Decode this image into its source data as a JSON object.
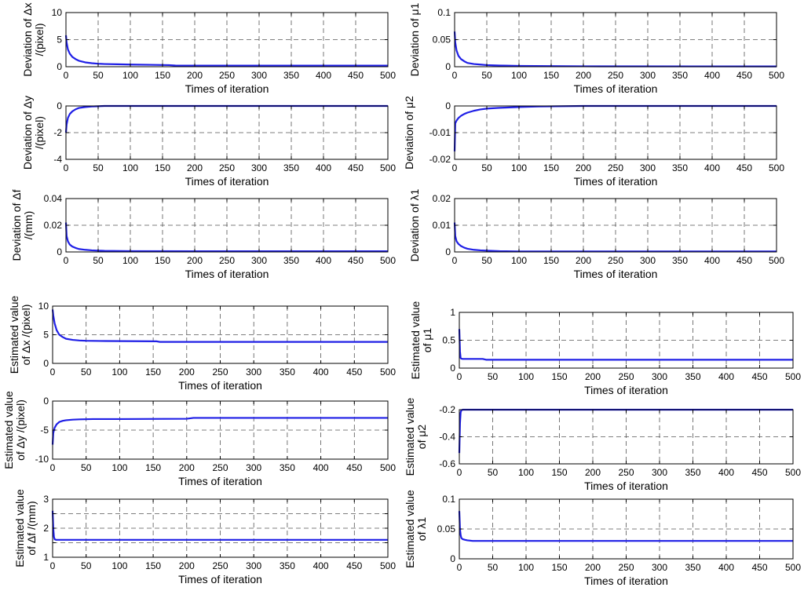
{
  "colors": {
    "line": "#1f1fe6",
    "grid": "#555555",
    "axis": "#000000"
  },
  "chart_data": [
    {
      "id": "dev-dx",
      "type": "line",
      "ylabel": [
        "Deviation of Δx",
        "/(pixel)"
      ],
      "xlabel": "Times of iteration",
      "xlim": [
        0,
        500
      ],
      "ylim": [
        0,
        10
      ],
      "xticks": [
        0,
        50,
        100,
        150,
        200,
        250,
        300,
        350,
        400,
        450,
        500
      ],
      "yticks": [
        0,
        5,
        10
      ],
      "ytick_labels": [
        "0",
        "5",
        "10"
      ],
      "series": [
        {
          "name": "Δx deviation",
          "x": [
            0,
            1,
            3,
            6,
            10,
            15,
            20,
            30,
            40,
            50,
            60,
            80,
            100,
            130,
            160,
            170,
            200,
            300,
            400,
            500
          ],
          "y": [
            5.8,
            4.5,
            3.2,
            2.4,
            1.8,
            1.4,
            1.1,
            0.8,
            0.65,
            0.55,
            0.5,
            0.45,
            0.4,
            0.35,
            0.3,
            0.22,
            0.2,
            0.2,
            0.2,
            0.2
          ]
        }
      ]
    },
    {
      "id": "dev-mu1",
      "type": "line",
      "ylabel": [
        "Deviation of μ1"
      ],
      "xlabel": "Times of iteration",
      "xlim": [
        0,
        500
      ],
      "ylim": [
        0,
        0.1
      ],
      "xticks": [
        0,
        50,
        100,
        150,
        200,
        250,
        300,
        350,
        400,
        450,
        500
      ],
      "yticks": [
        0,
        0.05,
        0.1
      ],
      "ytick_labels": [
        "0",
        "0.05",
        "0.1"
      ],
      "series": [
        {
          "name": "μ1 deviation",
          "x": [
            0,
            1,
            3,
            6,
            10,
            15,
            20,
            30,
            40,
            50,
            60,
            80,
            100,
            200,
            500
          ],
          "y": [
            0.065,
            0.045,
            0.03,
            0.02,
            0.014,
            0.01,
            0.007,
            0.005,
            0.004,
            0.003,
            0.0025,
            0.002,
            0.0015,
            0.0008,
            0.0005
          ]
        }
      ]
    },
    {
      "id": "dev-dy",
      "type": "line",
      "ylabel": [
        "Deviation of Δy",
        "/(pixel)"
      ],
      "xlabel": "Times of iteration",
      "xlim": [
        0,
        500
      ],
      "ylim": [
        -4,
        0
      ],
      "xticks": [
        0,
        50,
        100,
        150,
        200,
        250,
        300,
        350,
        400,
        450,
        500
      ],
      "yticks": [
        -4,
        -2,
        0
      ],
      "ytick_labels": [
        "-4",
        "-2",
        "0"
      ],
      "series": [
        {
          "name": "Δy deviation",
          "x": [
            0,
            1,
            3,
            6,
            10,
            15,
            20,
            30,
            40,
            50,
            60,
            500
          ],
          "y": [
            -2.0,
            -1.4,
            -0.9,
            -0.6,
            -0.4,
            -0.25,
            -0.15,
            -0.08,
            -0.04,
            -0.02,
            0,
            0
          ]
        }
      ]
    },
    {
      "id": "dev-mu2",
      "type": "line",
      "ylabel": [
        "Deviation of μ2"
      ],
      "xlabel": "Times of iteration",
      "xlim": [
        0,
        500
      ],
      "ylim": [
        -0.02,
        0
      ],
      "xticks": [
        0,
        50,
        100,
        150,
        200,
        250,
        300,
        350,
        400,
        450,
        500
      ],
      "yticks": [
        -0.02,
        -0.01,
        0
      ],
      "ytick_labels": [
        "-0.02",
        "-0.01",
        "0"
      ],
      "series": [
        {
          "name": "μ2 deviation",
          "x": [
            0,
            1,
            3,
            6,
            10,
            15,
            20,
            30,
            40,
            50,
            70,
            100,
            130,
            200,
            500
          ],
          "y": [
            -0.017,
            -0.0065,
            -0.0055,
            -0.0045,
            -0.0037,
            -0.003,
            -0.0025,
            -0.0018,
            -0.0013,
            -0.001,
            -0.0007,
            -0.0004,
            -0.0002,
            0,
            0
          ]
        }
      ]
    },
    {
      "id": "dev-df",
      "type": "line",
      "ylabel": [
        "Deviation of Δf",
        "/(mm)"
      ],
      "xlabel": "Times of iteration",
      "xlim": [
        0,
        500
      ],
      "ylim": [
        0,
        0.04
      ],
      "xticks": [
        0,
        50,
        100,
        150,
        200,
        250,
        300,
        350,
        400,
        450,
        500
      ],
      "yticks": [
        0,
        0.02,
        0.04
      ],
      "ytick_labels": [
        "0",
        "0.02",
        "0.04"
      ],
      "series": [
        {
          "name": "Δf deviation",
          "x": [
            0,
            1,
            3,
            6,
            10,
            15,
            20,
            30,
            40,
            50,
            60,
            100,
            200,
            500
          ],
          "y": [
            0.022,
            0.012,
            0.008,
            0.0055,
            0.004,
            0.003,
            0.0022,
            0.0016,
            0.0012,
            0.001,
            0.0008,
            0.0006,
            0.0005,
            0.0005
          ]
        }
      ]
    },
    {
      "id": "dev-lambda1",
      "type": "line",
      "ylabel": [
        "Deviation of λ1"
      ],
      "xlabel": "Times of iteration",
      "xlim": [
        0,
        500
      ],
      "ylim": [
        0,
        0.02
      ],
      "xticks": [
        0,
        50,
        100,
        150,
        200,
        250,
        300,
        350,
        400,
        450,
        500
      ],
      "yticks": [
        0,
        0.01,
        0.02
      ],
      "ytick_labels": [
        "0",
        "0.01",
        "0.02"
      ],
      "series": [
        {
          "name": "λ1 deviation",
          "x": [
            0,
            1,
            3,
            6,
            10,
            15,
            20,
            30,
            40,
            50,
            70,
            100,
            200,
            500
          ],
          "y": [
            0.011,
            0.006,
            0.004,
            0.003,
            0.0022,
            0.0016,
            0.0012,
            0.0008,
            0.0006,
            0.0005,
            0.0003,
            0.0002,
            0.0002,
            0.0002
          ]
        }
      ]
    },
    {
      "id": "est-dx",
      "type": "line",
      "ylabel": [
        "Estimated value",
        "of Δx /(pixel)"
      ],
      "xlabel": "Times of iteration",
      "xlim": [
        0,
        500
      ],
      "ylim": [
        0,
        10
      ],
      "xticks": [
        0,
        50,
        100,
        150,
        200,
        250,
        300,
        350,
        400,
        450,
        500
      ],
      "yticks": [
        0,
        5,
        10
      ],
      "ytick_labels": [
        "0",
        "5",
        "10"
      ],
      "series": [
        {
          "name": "Δx estimate",
          "x": [
            0,
            1,
            3,
            6,
            10,
            15,
            20,
            30,
            40,
            50,
            80,
            155,
            160,
            500
          ],
          "y": [
            9.4,
            8.4,
            7.0,
            5.8,
            5.0,
            4.6,
            4.3,
            4.1,
            4.0,
            3.95,
            3.9,
            3.85,
            3.75,
            3.75
          ]
        }
      ]
    },
    {
      "id": "est-mu1",
      "type": "line",
      "ylabel": [
        "Estimated value",
        "of μ1"
      ],
      "xlabel": "Times of iteration",
      "xlim": [
        0,
        500
      ],
      "ylim": [
        0,
        1
      ],
      "xticks": [
        0,
        50,
        100,
        150,
        200,
        250,
        300,
        350,
        400,
        450,
        500
      ],
      "yticks": [
        0,
        0.5,
        1
      ],
      "ytick_labels": [
        "0",
        "0.5",
        "1"
      ],
      "series": [
        {
          "name": "μ1 estimate",
          "x": [
            0,
            1,
            2,
            3,
            5,
            10,
            20,
            35,
            40,
            500
          ],
          "y": [
            0.7,
            0.3,
            0.18,
            0.17,
            0.165,
            0.165,
            0.165,
            0.165,
            0.15,
            0.15
          ]
        }
      ]
    },
    {
      "id": "est-dy",
      "type": "line",
      "ylabel": [
        "Estimated value",
        "of Δy /(pixel)"
      ],
      "xlabel": "Times of iteration",
      "xlim": [
        0,
        500
      ],
      "ylim": [
        -10,
        0
      ],
      "xticks": [
        0,
        50,
        100,
        150,
        200,
        250,
        300,
        350,
        400,
        450,
        500
      ],
      "yticks": [
        -10,
        -5,
        0
      ],
      "ytick_labels": [
        "-10",
        "-5",
        "0"
      ],
      "series": [
        {
          "name": "Δy estimate",
          "x": [
            0,
            1,
            3,
            6,
            10,
            15,
            20,
            30,
            40,
            60,
            100,
            200,
            210,
            500
          ],
          "y": [
            -7.5,
            -5.5,
            -4.6,
            -4.0,
            -3.6,
            -3.4,
            -3.3,
            -3.2,
            -3.15,
            -3.1,
            -3.1,
            -3.05,
            -2.9,
            -2.9
          ]
        }
      ]
    },
    {
      "id": "est-mu2",
      "type": "line",
      "ylabel": [
        "Estimated value",
        "of μ2"
      ],
      "xlabel": "Times of iteration",
      "xlim": [
        0,
        500
      ],
      "ylim": [
        -0.6,
        -0.2
      ],
      "xticks": [
        0,
        50,
        100,
        150,
        200,
        250,
        300,
        350,
        400,
        450,
        500
      ],
      "yticks": [
        -0.6,
        -0.4,
        -0.2
      ],
      "ytick_labels": [
        "-0.6",
        "-0.4",
        "-0.2"
      ],
      "series": [
        {
          "name": "μ2 estimate",
          "x": [
            0,
            1,
            2,
            3,
            5,
            500
          ],
          "y": [
            -0.52,
            -0.3,
            -0.22,
            -0.205,
            -0.2,
            -0.2
          ]
        }
      ]
    },
    {
      "id": "est-df",
      "type": "line",
      "ylabel": [
        "Estimated value",
        "of Δf /(mm)"
      ],
      "xlabel": "Times of iteration",
      "xlim": [
        0,
        500
      ],
      "ylim": [
        1,
        3
      ],
      "xticks": [
        0,
        50,
        100,
        150,
        200,
        250,
        300,
        350,
        400,
        450,
        500
      ],
      "yticks": [
        1,
        1.5,
        2,
        2.5,
        3
      ],
      "ytick_labels": [
        "1",
        "",
        "2",
        "",
        "3"
      ],
      "series": [
        {
          "name": "Δf estimate",
          "x": [
            0,
            1,
            2,
            3,
            5,
            10,
            500
          ],
          "y": [
            2.6,
            2.0,
            1.7,
            1.62,
            1.6,
            1.6,
            1.6
          ]
        }
      ]
    },
    {
      "id": "est-lambda1",
      "type": "line",
      "ylabel": [
        "Estimated value",
        "of λ1"
      ],
      "xlabel": "Times of iteration",
      "xlim": [
        0,
        500
      ],
      "ylim": [
        0,
        0.1
      ],
      "xticks": [
        0,
        50,
        100,
        150,
        200,
        250,
        300,
        350,
        400,
        450,
        500
      ],
      "yticks": [
        0,
        0.05,
        0.1
      ],
      "ytick_labels": [
        "0",
        "0.05",
        "0.1"
      ],
      "series": [
        {
          "name": "λ1 estimate",
          "x": [
            0,
            1,
            2,
            3,
            5,
            8,
            12,
            20,
            500
          ],
          "y": [
            0.08,
            0.05,
            0.04,
            0.035,
            0.033,
            0.032,
            0.031,
            0.03,
            0.03
          ]
        }
      ]
    }
  ]
}
